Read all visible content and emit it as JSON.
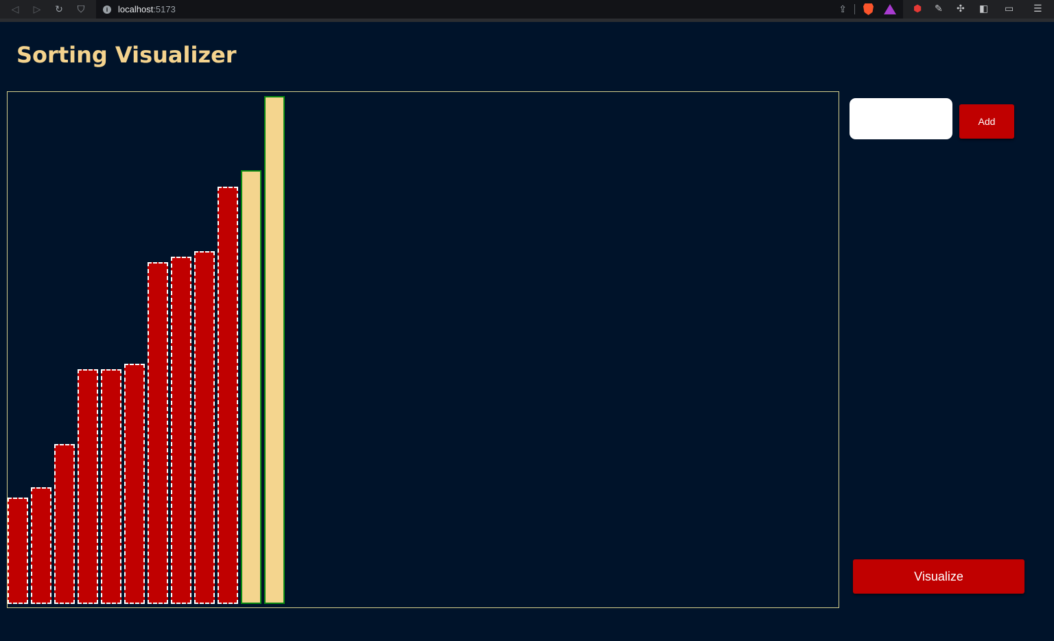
{
  "browser": {
    "url_host": "localhost",
    "url_port": ":5173",
    "icons": {
      "back": "back-icon",
      "forward": "forward-icon",
      "reload": "reload-icon",
      "bookmark": "bookmark-icon",
      "site_info": "info-icon",
      "share": "share-icon",
      "brave_shields": "brave-icon",
      "brave_rewards": "rewards-icon",
      "extensions": [
        "youtube-extension-icon",
        "eyedropper-icon",
        "puzzle-icon",
        "sidebar-icon",
        "wallet-icon",
        "menu-icon"
      ]
    }
  },
  "app": {
    "title": "Sorting Visualizer",
    "input": {
      "value": "",
      "placeholder": ""
    },
    "add_label": "Add",
    "visualize_label": "Visualize"
  },
  "colors": {
    "background": "#00132a",
    "title": "#f4d38e",
    "unsorted_bar": "#c00000",
    "sorted_bar": "#f4d58e",
    "sorted_border": "#0b8a12",
    "button": "#c00000"
  },
  "chart_data": {
    "type": "bar",
    "values": [
      155,
      170,
      233,
      342,
      342,
      350,
      498,
      506,
      514,
      608,
      632,
      740
    ],
    "states": [
      "unsorted",
      "unsorted",
      "unsorted",
      "unsorted",
      "unsorted",
      "unsorted",
      "unsorted",
      "unsorted",
      "unsorted",
      "unsorted",
      "sorted",
      "sorted"
    ],
    "title": "",
    "xlabel": "",
    "ylabel": ""
  }
}
